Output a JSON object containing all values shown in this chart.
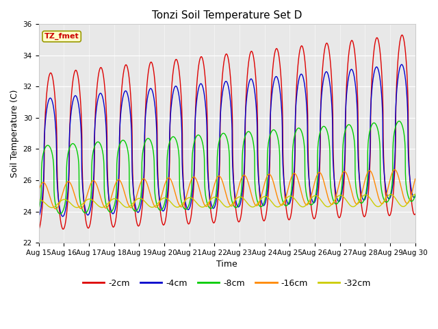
{
  "title": "Tonzi Soil Temperature Set D",
  "xlabel": "Time",
  "ylabel": "Soil Temperature (C)",
  "annotation": "TZ_fmet",
  "annotation_color": "#cc0000",
  "annotation_bg": "#ffffcc",
  "annotation_edge": "#999900",
  "ylim": [
    22,
    36
  ],
  "yticks": [
    22,
    24,
    26,
    28,
    30,
    32,
    34,
    36
  ],
  "legend_labels": [
    "-2cm",
    "-4cm",
    "-8cm",
    "-16cm",
    "-32cm"
  ],
  "legend_colors": [
    "#dd0000",
    "#0000cc",
    "#00cc00",
    "#ff8800",
    "#cccc00"
  ],
  "fig_bg": "#ffffff",
  "plot_bg": "#e8e8e8",
  "n_days": 15,
  "start_day": 15
}
